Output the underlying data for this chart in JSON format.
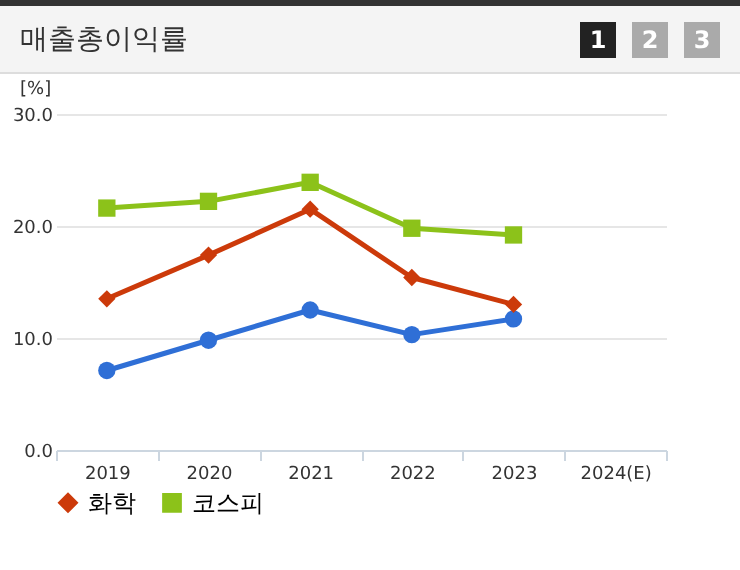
{
  "chart_data": {
    "type": "line",
    "title": "매출총이익률",
    "ylabel": "[%]",
    "annotations": [
      "1",
      "2",
      "3"
    ],
    "categories": [
      "2019",
      "2020",
      "2021",
      "2022",
      "2023",
      "2024(E)"
    ],
    "series": [
      {
        "color": "#2f6fd6",
        "marker": "circle",
        "values": [
          7.1,
          9.8,
          12.5,
          10.3,
          11.7,
          null
        ]
      },
      {
        "name": "화학",
        "color": "#cc3a0a",
        "marker": "diamond",
        "values": [
          13.5,
          17.4,
          21.5,
          15.4,
          13.0,
          null
        ]
      },
      {
        "name": "코스피",
        "color": "#8cc21a",
        "marker": "square",
        "values": [
          21.6,
          22.2,
          23.9,
          19.8,
          19.2,
          null
        ]
      }
    ],
    "ylim": [
      0,
      30
    ],
    "yticks": [
      {
        "value": 0,
        "label": "0.0"
      },
      {
        "value": 10,
        "label": "10.0"
      },
      {
        "value": 20,
        "label": "20.0"
      },
      {
        "value": 30,
        "label": "30.0"
      }
    ],
    "grid": "y",
    "legend": "bottom"
  }
}
